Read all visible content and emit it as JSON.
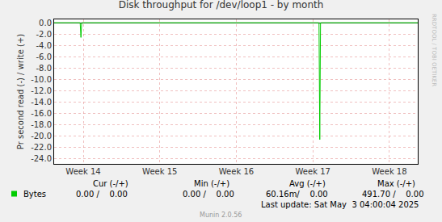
{
  "chart_data": {
    "type": "line",
    "title": "Disk throughput for /dev/loop1 - by month",
    "y_label": "Pr second read (-) / write (+)",
    "x": [
      13.62,
      13.96,
      13.97,
      13.98,
      17.08,
      17.09,
      17.1,
      18.37
    ],
    "series": [
      {
        "name": "Bytes",
        "color": "#00cc00",
        "values": [
          0,
          0,
          -2.6,
          0,
          0,
          -20.7,
          0,
          0
        ]
      }
    ],
    "xlim": [
      13.62,
      18.37
    ],
    "xticks": [
      {
        "value": 14,
        "label": "Week 14"
      },
      {
        "value": 15,
        "label": "Week 15"
      },
      {
        "value": 16,
        "label": "Week 16"
      },
      {
        "value": 17,
        "label": "Week 17"
      },
      {
        "value": 18,
        "label": "Week 18"
      }
    ],
    "ylim": [
      -25,
      0.6
    ],
    "yticks": [
      {
        "value": 0,
        "label": "0.0"
      },
      {
        "value": -2,
        "label": "-2.0"
      },
      {
        "value": -4,
        "label": "-4.0"
      },
      {
        "value": -6,
        "label": "-6.0"
      },
      {
        "value": -8,
        "label": "-8.0"
      },
      {
        "value": -10,
        "label": "-10.0"
      },
      {
        "value": -12,
        "label": "-12.0"
      },
      {
        "value": -14,
        "label": "-14.0"
      },
      {
        "value": -16,
        "label": "-16.0"
      },
      {
        "value": -18,
        "label": "-18.0"
      },
      {
        "value": -20,
        "label": "-20.0"
      },
      {
        "value": -22,
        "label": "-22.0"
      },
      {
        "value": -24,
        "label": "-24.0"
      }
    ],
    "grid": true,
    "legend_table": {
      "columns": [
        "Cur (-/+)",
        "Min (-/+)",
        "Avg (-/+)",
        "Max (-/+)"
      ],
      "rows": [
        [
          "0.00 /    0.00",
          "0.00 /    0.00",
          "60.16m/    0.00",
          "491.70 /    0.00"
        ]
      ]
    },
    "footer": "Last update: Sat May  3 04:00:04 2025",
    "credit": "Munin 2.0.56",
    "watermark": "RRDTOOL / TOBI OETIKER"
  }
}
